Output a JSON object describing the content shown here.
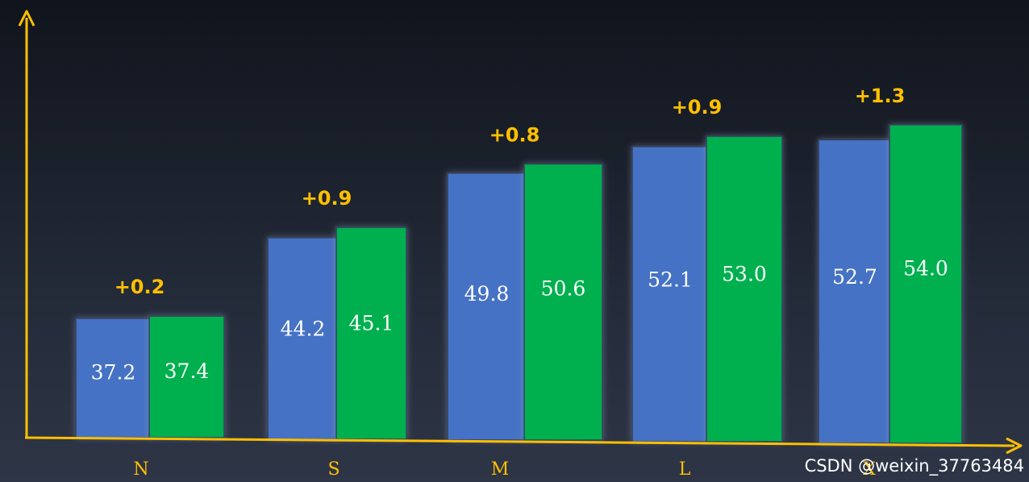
{
  "chart_data": {
    "type": "bar",
    "categories": [
      "N",
      "S",
      "M",
      "L",
      "X"
    ],
    "series": [
      {
        "values": [
          37.2,
          44.2,
          49.8,
          52.1,
          52.7
        ],
        "color": "#4472c4"
      },
      {
        "values": [
          37.4,
          45.1,
          50.6,
          53.0,
          54.0
        ],
        "color": "#00b050"
      }
    ],
    "annotations": [
      "+0.2",
      "+0.9",
      "+0.8",
      "+0.9",
      "+1.3"
    ],
    "axis_color": "#ffc000",
    "ylim": [
      20,
      58
    ]
  },
  "watermark": "CSDN @weixin_37763484"
}
